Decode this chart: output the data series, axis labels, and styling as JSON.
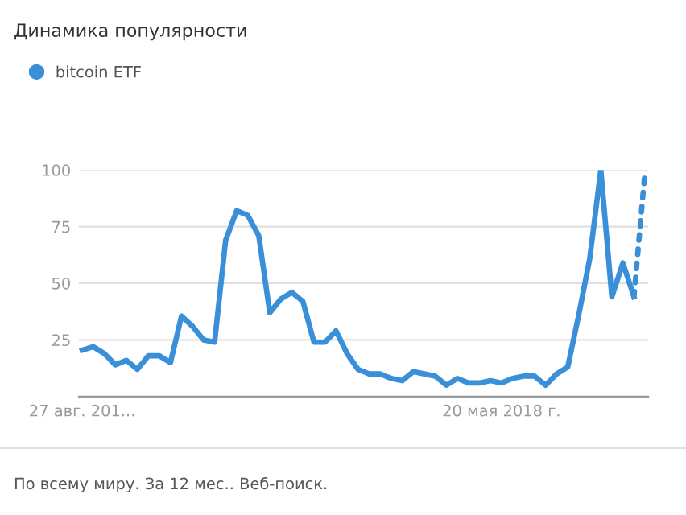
{
  "chart_data": {
    "type": "line",
    "title": "Динамика популярности",
    "categories": [
      "27 авг. 201...",
      null,
      null,
      null,
      null,
      null,
      null,
      null,
      null,
      null,
      null,
      null,
      null,
      null,
      null,
      null,
      null,
      null,
      null,
      null,
      null,
      null,
      null,
      null,
      null,
      null,
      null,
      null,
      null,
      null,
      null,
      null,
      null,
      null,
      null,
      null,
      null,
      null,
      "20 мая 2018 г.",
      null,
      null,
      null,
      null,
      null,
      null,
      null,
      null,
      null,
      null,
      null,
      null,
      null
    ],
    "series": [
      {
        "name": "bitcoin ETF",
        "color": "#3a8fd9",
        "line_style": "solid",
        "values": [
          20.5,
          22,
          19,
          14,
          16,
          12,
          18,
          18,
          15,
          35.5,
          31,
          25,
          24,
          69,
          82,
          80,
          71,
          37,
          43,
          46,
          42,
          24,
          24,
          29,
          19,
          12,
          10,
          10,
          8,
          7,
          11,
          10,
          9,
          5,
          8,
          6,
          6,
          7,
          6,
          8,
          9,
          9,
          5,
          10,
          13,
          36,
          61,
          100,
          44,
          59,
          44,
          null
        ]
      },
      {
        "color": "#3a8fd9",
        "line_style": "dotted",
        "values": [
          null,
          null,
          null,
          null,
          null,
          null,
          null,
          null,
          null,
          null,
          null,
          null,
          null,
          null,
          null,
          null,
          null,
          null,
          null,
          null,
          null,
          null,
          null,
          null,
          null,
          null,
          null,
          null,
          null,
          null,
          null,
          null,
          null,
          null,
          null,
          null,
          null,
          null,
          null,
          null,
          null,
          null,
          null,
          null,
          null,
          null,
          null,
          null,
          null,
          null,
          44,
          99
        ]
      }
    ],
    "ylim": [
      0,
      100
    ],
    "yticks": [
      25,
      50,
      75,
      100
    ],
    "grid": "y",
    "legend": "top left",
    "annotations": [
      "По всему миру. За 12 мес.. Веб-поиск."
    ]
  }
}
